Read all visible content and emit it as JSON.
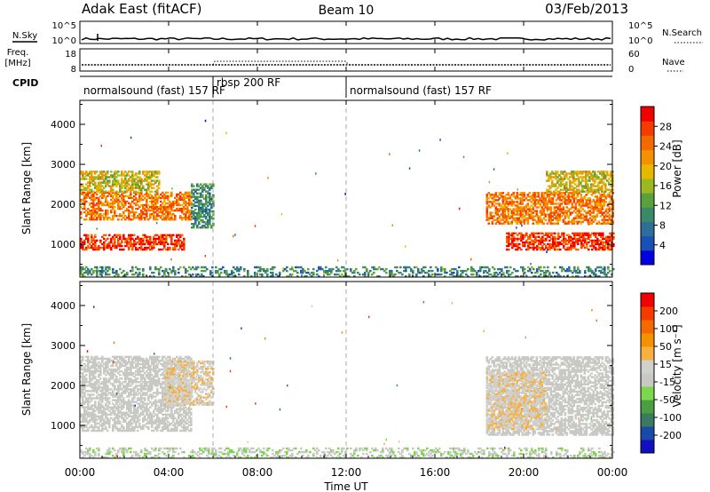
{
  "header": {
    "station": "Adak East (fitACF)",
    "beam": "Beam 10",
    "date": "03/Feb/2013"
  },
  "strip_labels": {
    "nsky": "N.Sky",
    "nsky_ticks": [
      "10^5",
      "10^0"
    ],
    "nsearch": "N.Search",
    "nsearch_ticks": [
      "10^5",
      "10^0"
    ],
    "freq_line1": "Freq.",
    "freq_line2": "[MHz]",
    "freq_ticks": [
      "18",
      "8"
    ],
    "nave": "Nave",
    "nave_ticks": [
      "60",
      "0"
    ],
    "cpid": "CPID"
  },
  "cpid_segments": [
    {
      "label": "normalsound (fast) 157 RF",
      "start_h": 0,
      "end_h": 6
    },
    {
      "label": "rbsp 200 RF",
      "start_h": 6,
      "end_h": 12
    },
    {
      "label": "normalsound (fast) 157 RF",
      "start_h": 12,
      "end_h": 24
    }
  ],
  "time_axis": {
    "label": "Time UT",
    "ticks": [
      "00:00",
      "04:00",
      "08:00",
      "12:00",
      "16:00",
      "20:00",
      "00:00"
    ]
  },
  "colors": {
    "ground": "#9a9a9a",
    "gray_scatter": "#c8c8c4",
    "power_scale": [
      "#0000e0",
      "#1850b8",
      "#2e6e98",
      "#3a8a6a",
      "#5aa03c",
      "#9cb820",
      "#e8b800",
      "#f59000",
      "#f56a00",
      "#f53c00",
      "#f00000"
    ],
    "velocity_scale": [
      "#f00000",
      "#f53c00",
      "#f56a00",
      "#f59000",
      "#f5b040",
      "#d0d0cc",
      "#c8c8c4",
      "#7ad84a",
      "#4aa040",
      "#3a7a60",
      "#1a4aa8",
      "#1010c0"
    ]
  },
  "chart_data": [
    {
      "type": "heatmap",
      "title": "Power",
      "xlabel": "Time UT",
      "ylabel": "Slant Range [km]",
      "xlim": [
        0,
        24
      ],
      "ylim": [
        180,
        4600
      ],
      "yticks": [
        1000,
        2000,
        3000,
        4000
      ],
      "colorbar_label": "Power [dB]",
      "colorbar_ticks": [
        "4",
        "8",
        "12",
        "16",
        "20",
        "24",
        "28"
      ],
      "colorbar_range": [
        0,
        32
      ],
      "regions": [
        {
          "name": "night-band-low",
          "t_start": 0,
          "t_end": 4.7,
          "r_start": 850,
          "r_end": 1250,
          "value": 28
        },
        {
          "name": "night-band-mid",
          "t_start": 0,
          "t_end": 5.0,
          "r_start": 1600,
          "r_end": 2300,
          "value": 24
        },
        {
          "name": "night-band-high",
          "t_start": 0,
          "t_end": 3.6,
          "r_start": 2300,
          "r_end": 2800,
          "value": 18
        },
        {
          "name": "dawn-tail",
          "t_start": 5.0,
          "t_end": 6.0,
          "r_start": 1400,
          "r_end": 2500,
          "value": 10
        },
        {
          "name": "ground-day",
          "t_start": 0,
          "t_end": 24,
          "r_start": 180,
          "r_end": 420,
          "value": 10
        },
        {
          "name": "evening-band-low",
          "t_start": 19.2,
          "t_end": 24,
          "r_start": 850,
          "r_end": 1300,
          "value": 28
        },
        {
          "name": "evening-band-mid",
          "t_start": 18.3,
          "t_end": 24,
          "r_start": 1500,
          "r_end": 2300,
          "value": 24
        },
        {
          "name": "evening-band-high",
          "t_start": 21,
          "t_end": 24,
          "r_start": 2300,
          "r_end": 2800,
          "value": 18
        }
      ]
    },
    {
      "type": "heatmap",
      "title": "Velocity",
      "xlabel": "Time UT",
      "ylabel": "Slant Range [km]",
      "xlim": [
        0,
        24
      ],
      "ylim": [
        180,
        4600
      ],
      "yticks": [
        1000,
        2000,
        3000,
        4000
      ],
      "colorbar_label": "Velocity [m s⁻¹]",
      "colorbar_ticks": [
        "200",
        "100",
        "50",
        "15",
        "-15",
        "-50",
        "-100",
        "-200"
      ],
      "colorbar_range": [
        -250,
        250
      ],
      "regions": [
        {
          "name": "night-gray",
          "t_start": 0,
          "t_end": 5.0,
          "r_start": 850,
          "r_end": 2700,
          "value": 0
        },
        {
          "name": "dawn-green",
          "t_start": 3.8,
          "t_end": 6.0,
          "r_start": 1500,
          "r_end": 2600,
          "value": 40
        },
        {
          "name": "ground-day",
          "t_start": 0,
          "t_end": 24,
          "r_start": 180,
          "r_end": 420,
          "value": -40
        },
        {
          "name": "evening-gray",
          "t_start": 18.3,
          "t_end": 24,
          "r_start": 750,
          "r_end": 2700,
          "value": 0
        },
        {
          "name": "evening-green",
          "t_start": 18.3,
          "t_end": 21,
          "r_start": 900,
          "r_end": 2300,
          "value": 40
        }
      ]
    }
  ]
}
